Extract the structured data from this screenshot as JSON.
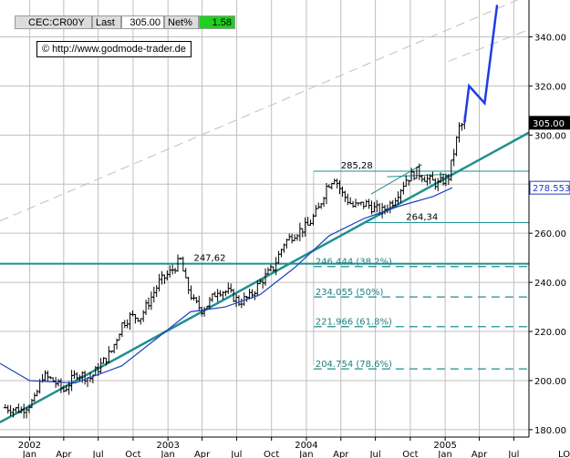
{
  "header": {
    "symbol": "CEC:CR00Y",
    "last_label": "Last",
    "last_value": "305.00",
    "netpct_label": "Net%",
    "netpct_value": "1.58"
  },
  "source": {
    "icon": "copyright-icon",
    "url": "http://www.godmode-trader.de"
  },
  "colors": {
    "trendline": "#1f8f8f",
    "moving_average": "#1f3fbf",
    "projection": "#1e3be8",
    "price_bars": "#000000",
    "netpct_box": "#1fd01f",
    "fib_text": "#1f8080",
    "grid": "#bfbfbf"
  },
  "chart_data": {
    "type": "line",
    "title": "",
    "xlabel": "",
    "ylabel": "",
    "x_ticks": [
      "2002 Jan",
      "Apr",
      "Jul",
      "Oct",
      "2003 Jan",
      "Apr",
      "Jul",
      "Oct",
      "2004 Jan",
      "Apr",
      "Jul",
      "Oct",
      "2005 Jan",
      "Apr",
      "Jul"
    ],
    "x_tick_dates": [
      "2002-01",
      "2002-04",
      "2002-07",
      "2002-10",
      "2003-01",
      "2003-04",
      "2003-07",
      "2003-10",
      "2004-01",
      "2004-04",
      "2004-07",
      "2004-10",
      "2005-01",
      "2005-04",
      "2005-07"
    ],
    "xlim": [
      "2001-10-15",
      "2005-08-10"
    ],
    "ylim": [
      177,
      355
    ],
    "y_ticks": [
      180,
      200,
      220,
      240,
      260,
      280,
      300,
      320,
      340
    ],
    "y_tick_labels": [
      "180.00",
      "200.00",
      "220.00",
      "240.00",
      "260.00",
      "280.00",
      "300.00",
      "320.00",
      "340.00"
    ],
    "grid": true,
    "series": [
      {
        "type": "ohlc_weekly_approx",
        "points": [
          [
            "2001-10-29",
            189
          ],
          [
            "2001-12-10",
            188
          ],
          [
            "2002-01-14",
            192
          ],
          [
            "2002-02-04",
            202
          ],
          [
            "2002-03-04",
            200
          ],
          [
            "2002-04-01",
            196
          ],
          [
            "2002-05-06",
            203
          ],
          [
            "2002-06-10",
            201
          ],
          [
            "2002-07-01",
            205
          ],
          [
            "2002-08-05",
            212
          ],
          [
            "2002-09-02",
            223
          ],
          [
            "2002-09-23",
            226
          ],
          [
            "2002-10-21",
            226
          ],
          [
            "2002-11-18",
            234
          ],
          [
            "2002-12-09",
            240
          ],
          [
            "2003-01-06",
            244
          ],
          [
            "2003-02-03",
            249
          ],
          [
            "2003-02-17",
            240
          ],
          [
            "2003-03-10",
            232
          ],
          [
            "2003-03-31",
            229
          ],
          [
            "2003-04-21",
            232
          ],
          [
            "2003-05-12",
            237
          ],
          [
            "2003-06-09",
            236
          ],
          [
            "2003-07-07",
            232
          ],
          [
            "2003-08-04",
            234
          ],
          [
            "2003-09-01",
            240
          ],
          [
            "2003-10-06",
            246
          ],
          [
            "2003-11-03",
            256
          ],
          [
            "2003-12-01",
            260
          ],
          [
            "2004-01-05",
            263
          ],
          [
            "2004-02-02",
            270
          ],
          [
            "2004-02-23",
            279
          ],
          [
            "2004-03-15",
            283
          ],
          [
            "2004-04-05",
            276
          ],
          [
            "2004-05-03",
            271
          ],
          [
            "2004-06-07",
            272
          ],
          [
            "2004-06-28",
            270
          ],
          [
            "2004-07-19",
            269
          ],
          [
            "2004-08-16",
            273
          ],
          [
            "2004-09-20",
            282
          ],
          [
            "2004-10-18",
            285
          ],
          [
            "2004-11-15",
            282
          ],
          [
            "2004-12-13",
            280
          ],
          [
            "2005-01-10",
            283
          ],
          [
            "2005-02-07",
            303
          ],
          [
            "2005-02-21",
            305
          ]
        ]
      },
      {
        "name": "",
        "type": "moving_average_approx",
        "points": [
          [
            "2001-10-15",
            207
          ],
          [
            "2002-01-01",
            200
          ],
          [
            "2002-05-01",
            199
          ],
          [
            "2002-09-01",
            206
          ],
          [
            "2002-12-01",
            217
          ],
          [
            "2003-03-01",
            228
          ],
          [
            "2003-06-01",
            230
          ],
          [
            "2003-09-01",
            235
          ],
          [
            "2003-12-01",
            246
          ],
          [
            "2004-03-01",
            259
          ],
          [
            "2004-06-01",
            266
          ],
          [
            "2004-09-01",
            271
          ],
          [
            "2004-12-01",
            275
          ],
          [
            "2005-01-20",
            278.553
          ]
        ]
      },
      {
        "name": "",
        "type": "projection",
        "points": [
          [
            "2005-02-21",
            305
          ],
          [
            "2005-03-05",
            320
          ],
          [
            "2005-04-15",
            313
          ],
          [
            "2005-05-18",
            353
          ]
        ]
      }
    ],
    "trendlines": [
      {
        "style": "solid",
        "from": [
          "2001-10-15",
          183
        ],
        "to": [
          "2005-08-10",
          301
        ]
      },
      {
        "style": "dashed",
        "from": [
          "2001-10-15",
          265
        ],
        "to": [
          "2005-08-10",
          357
        ]
      },
      {
        "style": "dashed",
        "from": [
          "2005-01-10",
          330
        ],
        "to": [
          "2005-08-10",
          343
        ]
      },
      {
        "style": "solid",
        "from": [
          "2004-08-01",
          283
        ],
        "to": [
          "2005-01-01",
          284
        ]
      },
      {
        "style": "solid",
        "from": [
          "2004-06-20",
          276
        ],
        "to": [
          "2004-11-01",
          288
        ]
      }
    ],
    "horizontal_levels": [
      {
        "value": 247.62,
        "label": "247,62",
        "style": "solid-thick",
        "from": "2001-10-15"
      },
      {
        "value": 285.28,
        "label": "285,28",
        "style": "solid",
        "from": "2004-01-20"
      },
      {
        "value": 264.34,
        "label": "264,34",
        "style": "solid",
        "from": "2004-06-01"
      }
    ],
    "fibonacci_levels": [
      {
        "value": 246.444,
        "label": "246.444 (38.2%)"
      },
      {
        "value": 234.055,
        "label": "234.055 (50%)"
      },
      {
        "value": 221.966,
        "label": "221.966 (61.8%)"
      },
      {
        "value": 204.754,
        "label": "204.754 (78.6%)"
      }
    ],
    "price_badges": [
      {
        "value": 305.0,
        "label": "305.00",
        "style": "dark"
      },
      {
        "value": 278.553,
        "label": "278.553",
        "style": "light"
      }
    ],
    "corner_label": "LO"
  }
}
